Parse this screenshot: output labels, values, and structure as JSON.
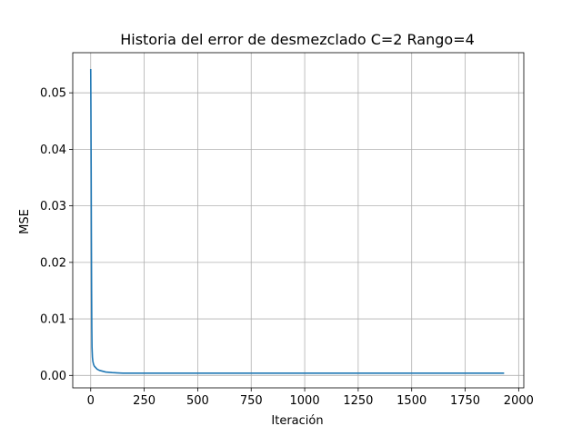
{
  "chart_data": {
    "type": "line",
    "title": "Historia del error de desmezclado C=2 Rango=4",
    "xlabel": "Iteración",
    "ylabel": "MSE",
    "xlim": [
      -84,
      2024
    ],
    "ylim": [
      -0.0022,
      0.0571
    ],
    "xticks": [
      0,
      250,
      500,
      750,
      1000,
      1250,
      1500,
      1750,
      2000
    ],
    "xtick_labels": [
      "0",
      "250",
      "500",
      "750",
      "1000",
      "1250",
      "1500",
      "1750",
      "2000"
    ],
    "yticks": [
      0.0,
      0.01,
      0.02,
      0.03,
      0.04,
      0.05
    ],
    "ytick_labels": [
      "0.00",
      "0.01",
      "0.02",
      "0.03",
      "0.04",
      "0.05"
    ],
    "grid": true,
    "series": [
      {
        "color": "#1f77b4",
        "x": [
          0,
          1,
          2,
          3,
          4,
          5,
          6,
          8,
          10,
          13,
          16,
          20,
          25,
          30,
          40,
          50,
          70,
          100,
          150,
          200,
          300,
          500,
          750,
          1000,
          1250,
          1500,
          1750,
          1932
        ],
        "y": [
          0.0542,
          0.047,
          0.037,
          0.025,
          0.015,
          0.0085,
          0.005,
          0.0032,
          0.0025,
          0.002,
          0.0017,
          0.0015,
          0.0013,
          0.0011,
          0.0009,
          0.0008,
          0.0006,
          0.0005,
          0.0004,
          0.0004,
          0.0004,
          0.0004,
          0.0004,
          0.0004,
          0.0004,
          0.0004,
          0.0004,
          0.0004
        ]
      }
    ]
  }
}
